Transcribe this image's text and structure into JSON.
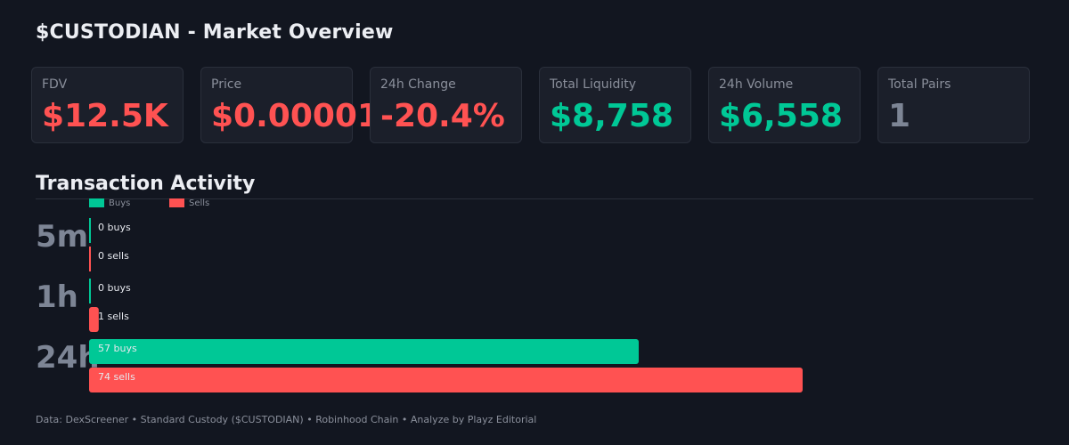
{
  "header": {
    "title": "$CUSTODIAN - Market Overview"
  },
  "stats": [
    {
      "label": "FDV",
      "value": "$12.5K",
      "color": "#ff5252"
    },
    {
      "label": "Price",
      "value": "$0.00001",
      "color": "#ff5252"
    },
    {
      "label": "24h Change",
      "value": "-20.4%",
      "color": "#ff5252"
    },
    {
      "label": "Total Liquidity",
      "value": "$8,758",
      "color": "#00c896"
    },
    {
      "label": "24h Volume",
      "value": "$6,558",
      "color": "#00c896"
    },
    {
      "label": "Total Pairs",
      "value": "1",
      "color": "#7d8595"
    }
  ],
  "section": {
    "title": "Transaction Activity"
  },
  "chart_data": {
    "type": "bar",
    "orientation": "horizontal",
    "legend": {
      "position": "top-left",
      "entries": [
        "Buys",
        "Sells"
      ]
    },
    "colors": {
      "buys": "#00c896",
      "sells": "#ff5252",
      "period_label": "#7d8595"
    },
    "categories": [
      "5m",
      "1h",
      "24h"
    ],
    "series": [
      {
        "name": "Buys",
        "values": [
          0,
          0,
          57
        ],
        "labels": [
          "0 buys",
          "0 buys",
          "57 buys"
        ]
      },
      {
        "name": "Sells",
        "values": [
          0,
          1,
          74
        ],
        "labels": [
          "0 sells",
          "1 sells",
          "74 sells"
        ]
      }
    ],
    "xlim": [
      0,
      74
    ]
  },
  "footer": {
    "text": "Data: DexScreener  •  Standard Custody ($CUSTODIAN)  •  Robinhood Chain  •  Analyze by Playz Editorial"
  }
}
